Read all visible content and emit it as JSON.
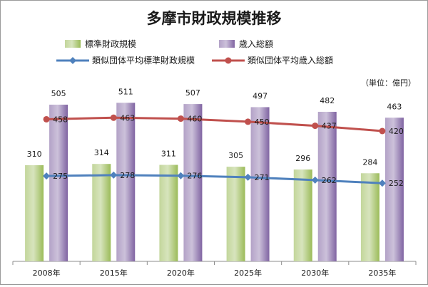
{
  "chart_data": {
    "type": "bar",
    "title": "多摩市財政規模推移",
    "unit_note": "（単位：億円）",
    "categories": [
      "2008年",
      "2015年",
      "2020年",
      "2025年",
      "2030年",
      "2035年"
    ],
    "ylim": [
      0,
      560
    ],
    "grid": false,
    "legend_position": "top",
    "bar_series": [
      {
        "name": "標準財政規模",
        "values": [
          310,
          314,
          311,
          305,
          296,
          284
        ],
        "color": "#9bbb59"
      },
      {
        "name": "歳入総額",
        "values": [
          505,
          511,
          507,
          497,
          482,
          463
        ],
        "color": "#8064a2"
      }
    ],
    "line_series": [
      {
        "name": "類似団体平均標準財政規模",
        "values": [
          275,
          278,
          276,
          271,
          262,
          252
        ],
        "color": "#4f81bd"
      },
      {
        "name": "類似団体平均歳入総額",
        "values": [
          458,
          463,
          460,
          450,
          437,
          420
        ],
        "color": "#c0504d"
      }
    ]
  }
}
